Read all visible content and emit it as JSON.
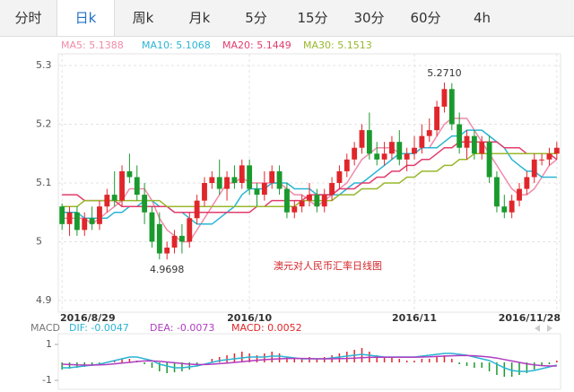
{
  "tabs": [
    "分时",
    "日k",
    "周k",
    "月k",
    "5分",
    "15分",
    "30分",
    "60分",
    "4h"
  ],
  "active_tab": 1,
  "chart_data": [
    {
      "type": "candlestick",
      "title": "澳元对人民币汇率日线图",
      "categories": [
        "2016/8/29",
        null,
        null,
        null,
        null,
        null,
        null,
        null,
        null,
        null,
        null,
        null,
        null,
        null,
        null,
        null,
        null,
        null,
        null,
        null,
        null,
        null,
        null,
        null,
        null,
        "2016/10",
        null,
        null,
        null,
        null,
        null,
        null,
        null,
        null,
        null,
        null,
        null,
        null,
        null,
        null,
        null,
        null,
        null,
        null,
        null,
        null,
        null,
        "2016/11",
        null,
        null,
        null,
        null,
        null,
        null,
        null,
        null,
        null,
        null,
        null,
        null,
        null,
        null,
        null,
        null,
        null,
        null,
        "2016/11/28"
      ],
      "open": [
        5.06,
        5.03,
        5.05,
        5.02,
        5.04,
        5.03,
        5.06,
        5.08,
        5.07,
        5.12,
        5.11,
        5.08,
        5.05,
        5.03,
        4.98,
        4.99,
        5.01,
        5.0,
        5.04,
        5.07,
        5.1,
        5.11,
        5.09,
        5.11,
        5.1,
        5.13,
        5.09,
        5.08,
        5.1,
        5.12,
        5.09,
        5.05,
        5.06,
        5.07,
        5.08,
        5.06,
        5.08,
        5.1,
        5.12,
        5.14,
        5.16,
        5.19,
        5.15,
        5.14,
        5.15,
        5.17,
        5.14,
        5.15,
        5.16,
        5.18,
        5.19,
        5.23,
        5.26,
        5.2,
        5.16,
        5.18,
        5.15,
        5.17,
        5.11,
        5.06,
        5.05,
        5.07,
        5.09,
        5.11,
        5.14,
        5.14,
        5.15
      ],
      "high": [
        5.065,
        5.06,
        5.06,
        5.05,
        5.06,
        5.07,
        5.09,
        5.12,
        5.13,
        5.15,
        5.13,
        5.1,
        5.06,
        5.05,
        5.0,
        5.02,
        5.03,
        5.05,
        5.08,
        5.11,
        5.12,
        5.14,
        5.12,
        5.13,
        5.14,
        5.14,
        5.1,
        5.12,
        5.13,
        5.13,
        5.1,
        5.07,
        5.08,
        5.1,
        5.09,
        5.09,
        5.11,
        5.13,
        5.15,
        5.17,
        5.2,
        5.22,
        5.17,
        5.17,
        5.18,
        5.19,
        5.16,
        5.18,
        5.2,
        5.21,
        5.24,
        5.271,
        5.27,
        5.22,
        5.19,
        5.19,
        5.18,
        5.18,
        5.12,
        5.08,
        5.08,
        5.1,
        5.12,
        5.15,
        5.15,
        5.16,
        5.17
      ],
      "low": [
        5.02,
        5.01,
        5.01,
        5.01,
        5.02,
        5.02,
        5.05,
        5.06,
        5.06,
        5.1,
        5.07,
        5.03,
        4.99,
        4.97,
        4.9698,
        4.98,
        4.98,
        4.99,
        5.03,
        5.06,
        5.09,
        5.08,
        5.07,
        5.09,
        5.09,
        5.08,
        5.06,
        5.07,
        5.09,
        5.08,
        5.04,
        5.04,
        5.05,
        5.06,
        5.05,
        5.05,
        5.07,
        5.09,
        5.11,
        5.13,
        5.15,
        5.14,
        5.13,
        5.13,
        5.14,
        5.13,
        5.12,
        5.14,
        5.15,
        5.17,
        5.18,
        5.22,
        5.19,
        5.15,
        5.14,
        5.14,
        5.14,
        5.1,
        5.05,
        5.04,
        5.04,
        5.06,
        5.08,
        5.1,
        5.13,
        5.13,
        5.14
      ],
      "close": [
        5.03,
        5.05,
        5.02,
        5.04,
        5.03,
        5.06,
        5.08,
        5.07,
        5.12,
        5.11,
        5.08,
        5.05,
        5.0,
        4.98,
        4.99,
        5.01,
        5.0,
        5.04,
        5.07,
        5.1,
        5.11,
        5.09,
        5.11,
        5.1,
        5.13,
        5.09,
        5.08,
        5.1,
        5.12,
        5.09,
        5.05,
        5.06,
        5.07,
        5.08,
        5.06,
        5.08,
        5.1,
        5.12,
        5.14,
        5.16,
        5.19,
        5.15,
        5.14,
        5.15,
        5.17,
        5.14,
        5.15,
        5.16,
        5.18,
        5.19,
        5.23,
        5.26,
        5.2,
        5.16,
        5.18,
        5.15,
        5.17,
        5.11,
        5.06,
        5.05,
        5.07,
        5.09,
        5.11,
        5.14,
        5.14,
        5.15,
        5.16
      ],
      "up_color": "#e0262b",
      "down_color": "#1a9a2e",
      "high_label": {
        "value": 5.271,
        "label": "5.2710"
      },
      "low_label": {
        "value": 4.9698,
        "label": "4.9698"
      },
      "series": [
        {
          "name": "MA5: 5.1388",
          "color": "#f08aa8",
          "values": [
            5.04,
            5.04,
            5.04,
            5.04,
            5.03,
            5.04,
            5.05,
            5.06,
            5.07,
            5.09,
            5.09,
            5.09,
            5.07,
            5.04,
            5.02,
            5.01,
            5.0,
            5.0,
            5.02,
            5.04,
            5.06,
            5.08,
            5.1,
            5.1,
            5.11,
            5.1,
            5.1,
            5.1,
            5.1,
            5.1,
            5.09,
            5.08,
            5.08,
            5.07,
            5.06,
            5.07,
            5.08,
            5.09,
            5.1,
            5.12,
            5.14,
            5.15,
            5.16,
            5.16,
            5.16,
            5.15,
            5.15,
            5.15,
            5.16,
            5.16,
            5.18,
            5.2,
            5.21,
            5.21,
            5.21,
            5.19,
            5.17,
            5.15,
            5.13,
            5.11,
            5.09,
            5.08,
            5.08,
            5.09,
            5.11,
            5.13,
            5.14
          ]
        },
        {
          "name": "MA10: 5.1068",
          "color": "#2ab4d4",
          "values": [
            5.05,
            5.05,
            5.05,
            5.04,
            5.04,
            5.04,
            5.04,
            5.05,
            5.05,
            5.06,
            5.06,
            5.07,
            5.07,
            5.06,
            5.06,
            5.05,
            5.05,
            5.04,
            5.03,
            5.03,
            5.03,
            5.04,
            5.05,
            5.06,
            5.08,
            5.09,
            5.09,
            5.09,
            5.1,
            5.1,
            5.1,
            5.09,
            5.09,
            5.09,
            5.08,
            5.08,
            5.08,
            5.08,
            5.09,
            5.1,
            5.1,
            5.11,
            5.12,
            5.13,
            5.14,
            5.15,
            5.15,
            5.15,
            5.16,
            5.16,
            5.16,
            5.17,
            5.18,
            5.18,
            5.19,
            5.19,
            5.19,
            5.18,
            5.17,
            5.16,
            5.14,
            5.13,
            5.12,
            5.12,
            5.11,
            5.11,
            5.11
          ]
        },
        {
          "name": "MA20: 5.1449",
          "color": "#e23c6c",
          "values": [
            5.08,
            5.08,
            5.08,
            5.07,
            5.07,
            5.07,
            5.07,
            5.07,
            5.06,
            5.06,
            5.06,
            5.06,
            5.06,
            5.06,
            5.06,
            5.05,
            5.05,
            5.05,
            5.05,
            5.05,
            5.05,
            5.05,
            5.05,
            5.05,
            5.05,
            5.05,
            5.06,
            5.06,
            5.07,
            5.07,
            5.07,
            5.07,
            5.07,
            5.08,
            5.08,
            5.08,
            5.08,
            5.09,
            5.09,
            5.09,
            5.1,
            5.1,
            5.11,
            5.11,
            5.12,
            5.12,
            5.13,
            5.13,
            5.14,
            5.14,
            5.15,
            5.16,
            5.16,
            5.17,
            5.17,
            5.17,
            5.17,
            5.17,
            5.17,
            5.16,
            5.16,
            5.16,
            5.15,
            5.15,
            5.15,
            5.15,
            5.14
          ]
        },
        {
          "name": "MA30: 5.1513",
          "color": "#98b82c",
          "values": [
            5.06,
            5.06,
            5.06,
            5.07,
            5.07,
            5.07,
            5.07,
            5.07,
            5.07,
            5.07,
            5.07,
            5.07,
            5.07,
            5.07,
            5.06,
            5.06,
            5.06,
            5.06,
            5.06,
            5.06,
            5.06,
            5.06,
            5.06,
            5.06,
            5.06,
            5.06,
            5.06,
            5.06,
            5.06,
            5.06,
            5.06,
            5.06,
            5.07,
            5.07,
            5.07,
            5.07,
            5.07,
            5.08,
            5.08,
            5.08,
            5.09,
            5.09,
            5.09,
            5.1,
            5.1,
            5.1,
            5.11,
            5.11,
            5.12,
            5.12,
            5.12,
            5.13,
            5.13,
            5.14,
            5.14,
            5.15,
            5.15,
            5.15,
            5.15,
            5.15,
            5.15,
            5.15,
            5.15,
            5.15,
            5.15,
            5.15,
            5.15
          ]
        }
      ],
      "ylim": [
        4.88,
        5.32
      ],
      "yticks": [
        5.3,
        5.2,
        5.1,
        5,
        4.9
      ],
      "grid": true
    },
    {
      "type": "macd",
      "label": "MACD",
      "histogram": {
        "name": "MACD: 0.0052",
        "up_color": "#e0262b",
        "down_color": "#1a9a2e",
        "values": [
          -0.4,
          -0.35,
          -0.3,
          -0.25,
          -0.2,
          -0.1,
          0.0,
          0.1,
          0.2,
          0.2,
          0.1,
          -0.1,
          -0.3,
          -0.5,
          -0.6,
          -0.55,
          -0.5,
          -0.4,
          -0.2,
          0.0,
          0.2,
          0.3,
          0.4,
          0.5,
          0.6,
          0.5,
          0.4,
          0.5,
          0.6,
          0.5,
          0.3,
          0.2,
          0.2,
          0.3,
          0.2,
          0.3,
          0.4,
          0.5,
          0.6,
          0.7,
          0.8,
          0.6,
          0.4,
          0.3,
          0.3,
          0.2,
          0.1,
          0.1,
          0.2,
          0.2,
          0.3,
          0.4,
          0.2,
          -0.1,
          -0.2,
          -0.3,
          -0.3,
          -0.5,
          -0.7,
          -0.8,
          -0.8,
          -0.7,
          -0.6,
          -0.4,
          -0.2,
          -0.1,
          0.1
        ]
      },
      "series": [
        {
          "name": "DIF: -0.0047",
          "color": "#2ab4d4",
          "values": [
            -0.3,
            -0.3,
            -0.25,
            -0.2,
            -0.15,
            -0.1,
            0.0,
            0.1,
            0.2,
            0.3,
            0.3,
            0.2,
            0.1,
            -0.1,
            -0.2,
            -0.3,
            -0.3,
            -0.25,
            -0.2,
            -0.1,
            0.0,
            0.1,
            0.15,
            0.2,
            0.25,
            0.3,
            0.3,
            0.3,
            0.35,
            0.35,
            0.3,
            0.25,
            0.2,
            0.2,
            0.2,
            0.2,
            0.25,
            0.3,
            0.35,
            0.4,
            0.45,
            0.4,
            0.35,
            0.3,
            0.3,
            0.3,
            0.3,
            0.3,
            0.35,
            0.4,
            0.45,
            0.5,
            0.5,
            0.45,
            0.4,
            0.3,
            0.2,
            0.1,
            -0.1,
            -0.3,
            -0.45,
            -0.5,
            -0.5,
            -0.45,
            -0.35,
            -0.25,
            -0.15
          ]
        },
        {
          "name": "DEA: -0.0073",
          "color": "#b03cc0",
          "values": [
            -0.1,
            -0.12,
            -0.14,
            -0.15,
            -0.15,
            -0.14,
            -0.12,
            -0.08,
            -0.04,
            0.0,
            0.05,
            0.08,
            0.08,
            0.06,
            0.02,
            -0.02,
            -0.06,
            -0.1,
            -0.12,
            -0.12,
            -0.1,
            -0.07,
            -0.04,
            0.0,
            0.04,
            0.08,
            0.12,
            0.15,
            0.18,
            0.2,
            0.22,
            0.22,
            0.22,
            0.21,
            0.2,
            0.2,
            0.2,
            0.21,
            0.22,
            0.24,
            0.26,
            0.28,
            0.29,
            0.29,
            0.29,
            0.29,
            0.29,
            0.29,
            0.3,
            0.31,
            0.33,
            0.35,
            0.37,
            0.38,
            0.38,
            0.37,
            0.34,
            0.3,
            0.24,
            0.16,
            0.08,
            0.0,
            -0.08,
            -0.14,
            -0.18,
            -0.2,
            -0.2
          ]
        }
      ],
      "ylim": [
        -1.5,
        1.6
      ],
      "yticks": [
        1,
        -1
      ]
    }
  ]
}
